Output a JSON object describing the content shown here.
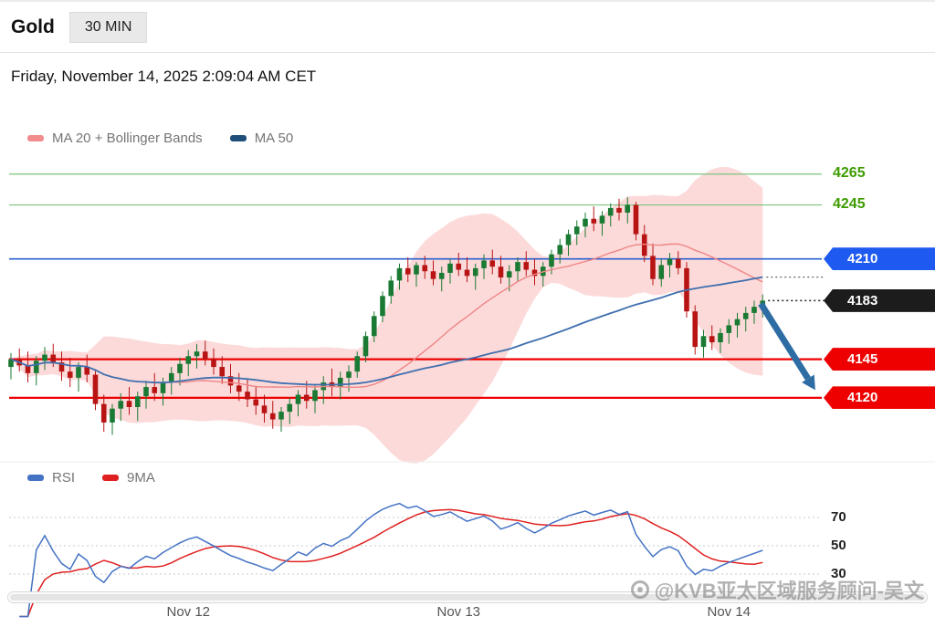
{
  "header": {
    "title": "Gold",
    "timeframe": "30 MIN",
    "datetime": "Friday, November 14, 2025 2:09:04 AM CET"
  },
  "legend_main": [
    {
      "label": "MA 20 + Bollinger Bands",
      "color": "#f28b8b"
    },
    {
      "label": "MA 50",
      "color": "#1f4e79"
    }
  ],
  "legend_rsi": [
    {
      "label": "RSI",
      "color": "#4472c4"
    },
    {
      "label": "9MA",
      "color": "#e02020"
    }
  ],
  "watermark": {
    "text": "@KVB亚太区域服务顾问-吴文"
  },
  "chart_data": {
    "type": "candlestick",
    "instrument": "Gold",
    "interval": "30 MIN",
    "price_axis": {
      "visible_min": 4090,
      "visible_max": 4295
    },
    "x_ticks": [
      {
        "label": "Nov 12",
        "index": 21
      },
      {
        "label": "Nov 13",
        "index": 53
      },
      {
        "label": "Nov 14",
        "index": 85
      }
    ],
    "levels": [
      {
        "label": "4265",
        "price": 4265,
        "kind": "text",
        "color": "#3d9c00",
        "bg": null,
        "line_color": "#7cc47c",
        "line_width": 1.2
      },
      {
        "label": "4245",
        "price": 4245,
        "kind": "text",
        "color": "#3d9c00",
        "bg": null,
        "line_color": "#7cc47c",
        "line_width": 1.2
      },
      {
        "label": "4210",
        "price": 4210,
        "kind": "badge",
        "color": "#ffffff",
        "bg": "#1f5af0",
        "line_color": "#2a5fd0",
        "line_width": 1.6
      },
      {
        "label": "4183",
        "price": 4183,
        "kind": "badge",
        "color": "#ffffff",
        "bg": "#1c1c1c",
        "line_color": null,
        "line_width": 0
      },
      {
        "label": "4145",
        "price": 4145,
        "kind": "badge",
        "color": "#ffffff",
        "bg": "#ee0000",
        "line_color": "#ee0000",
        "line_width": 2.2
      },
      {
        "label": "4120",
        "price": 4120,
        "kind": "badge",
        "color": "#ffffff",
        "bg": "#ee0000",
        "line_color": "#ee0000",
        "line_width": 2.2
      }
    ],
    "overlays": {
      "ma20_bollinger": {
        "period": 20,
        "stdev_mult": 2
      },
      "ma50": {
        "period": 50
      }
    },
    "rsi": {
      "period": 14,
      "signal_period": 9,
      "gridlines": [
        {
          "label": "70",
          "value": 70
        },
        {
          "label": "50",
          "value": 50
        },
        {
          "label": "30",
          "value": 30
        }
      ]
    },
    "annotation_arrow": {
      "from_price": 4181,
      "to_price": 4125,
      "from_xfrac": 0.925,
      "to_xfrac": 0.992
    },
    "colors": {
      "up": "#1a7a33",
      "down": "#b81414",
      "band_fill": "rgba(246,140,140,0.32)",
      "ma20": "#ef8585",
      "ma50": "#3f6fae",
      "rsi": "#4472c4",
      "rsi_ma": "#e02020",
      "arrow": "#2e6da4"
    },
    "candles": [
      [
        4140,
        4149,
        4132,
        4145
      ],
      [
        4145,
        4152,
        4137,
        4141
      ],
      [
        4141,
        4150,
        4130,
        4136
      ],
      [
        4136,
        4147,
        4128,
        4144
      ],
      [
        4144,
        4153,
        4138,
        4148
      ],
      [
        4148,
        4155,
        4140,
        4143
      ],
      [
        4143,
        4150,
        4131,
        4137
      ],
      [
        4137,
        4146,
        4127,
        4133
      ],
      [
        4133,
        4143,
        4124,
        4140
      ],
      [
        4140,
        4148,
        4130,
        4135
      ],
      [
        4135,
        4138,
        4112,
        4116
      ],
      [
        4116,
        4122,
        4098,
        4104
      ],
      [
        4104,
        4116,
        4096,
        4113
      ],
      [
        4113,
        4123,
        4105,
        4118
      ],
      [
        4118,
        4127,
        4109,
        4114
      ],
      [
        4114,
        4124,
        4105,
        4121
      ],
      [
        4121,
        4131,
        4113,
        4127
      ],
      [
        4127,
        4136,
        4118,
        4123
      ],
      [
        4123,
        4133,
        4115,
        4130
      ],
      [
        4130,
        4140,
        4122,
        4136
      ],
      [
        4136,
        4146,
        4128,
        4142
      ],
      [
        4142,
        4151,
        4134,
        4147
      ],
      [
        4147,
        4155,
        4139,
        4150
      ],
      [
        4150,
        4157,
        4141,
        4145
      ],
      [
        4145,
        4152,
        4135,
        4140
      ],
      [
        4140,
        4147,
        4129,
        4134
      ],
      [
        4134,
        4142,
        4123,
        4128
      ],
      [
        4128,
        4136,
        4118,
        4124
      ],
      [
        4124,
        4132,
        4114,
        4119
      ],
      [
        4119,
        4127,
        4109,
        4115
      ],
      [
        4115,
        4122,
        4104,
        4110
      ],
      [
        4110,
        4118,
        4100,
        4106
      ],
      [
        4106,
        4114,
        4098,
        4111
      ],
      [
        4111,
        4120,
        4103,
        4116
      ],
      [
        4116,
        4125,
        4108,
        4122
      ],
      [
        4122,
        4131,
        4113,
        4118
      ],
      [
        4118,
        4128,
        4110,
        4125
      ],
      [
        4125,
        4134,
        4116,
        4130
      ],
      [
        4130,
        4139,
        4121,
        4127
      ],
      [
        4127,
        4137,
        4119,
        4133
      ],
      [
        4133,
        4141,
        4124,
        4137
      ],
      [
        4137,
        4150,
        4133,
        4147
      ],
      [
        4147,
        4163,
        4143,
        4160
      ],
      [
        4160,
        4176,
        4156,
        4173
      ],
      [
        4173,
        4189,
        4169,
        4186
      ],
      [
        4186,
        4199,
        4181,
        4196
      ],
      [
        4196,
        4207,
        4190,
        4204
      ],
      [
        4204,
        4211,
        4195,
        4200
      ],
      [
        4200,
        4208,
        4192,
        4206
      ],
      [
        4206,
        4212,
        4197,
        4202
      ],
      [
        4202,
        4209,
        4193,
        4197
      ],
      [
        4197,
        4205,
        4189,
        4201
      ],
      [
        4201,
        4210,
        4194,
        4207
      ],
      [
        4207,
        4214,
        4199,
        4203
      ],
      [
        4203,
        4211,
        4195,
        4199
      ],
      [
        4199,
        4207,
        4190,
        4204
      ],
      [
        4204,
        4213,
        4197,
        4209
      ],
      [
        4209,
        4216,
        4200,
        4205
      ],
      [
        4205,
        4212,
        4194,
        4198
      ],
      [
        4198,
        4206,
        4189,
        4202
      ],
      [
        4202,
        4211,
        4195,
        4208
      ],
      [
        4208,
        4215,
        4199,
        4203
      ],
      [
        4203,
        4210,
        4193,
        4199
      ],
      [
        4199,
        4208,
        4192,
        4205
      ],
      [
        4205,
        4216,
        4200,
        4213
      ],
      [
        4213,
        4223,
        4207,
        4219
      ],
      [
        4219,
        4229,
        4212,
        4226
      ],
      [
        4226,
        4235,
        4219,
        4231
      ],
      [
        4231,
        4240,
        4224,
        4236
      ],
      [
        4236,
        4244,
        4228,
        4233
      ],
      [
        4233,
        4241,
        4225,
        4238
      ],
      [
        4238,
        4246,
        4231,
        4243
      ],
      [
        4243,
        4249,
        4235,
        4240
      ],
      [
        4240,
        4250,
        4233,
        4245
      ],
      [
        4245,
        4247,
        4222,
        4226
      ],
      [
        4226,
        4232,
        4208,
        4212
      ],
      [
        4212,
        4220,
        4193,
        4197
      ],
      [
        4197,
        4210,
        4192,
        4206
      ],
      [
        4206,
        4214,
        4198,
        4210
      ],
      [
        4210,
        4215,
        4200,
        4204
      ],
      [
        4204,
        4208,
        4172,
        4176
      ],
      [
        4176,
        4180,
        4148,
        4153
      ],
      [
        4153,
        4164,
        4146,
        4160
      ],
      [
        4160,
        4167,
        4151,
        4156
      ],
      [
        4156,
        4165,
        4149,
        4162
      ],
      [
        4162,
        4171,
        4155,
        4167
      ],
      [
        4167,
        4175,
        4159,
        4171
      ],
      [
        4171,
        4179,
        4163,
        4175
      ],
      [
        4175,
        4183,
        4168,
        4179
      ],
      [
        4179,
        4187,
        4172,
        4183
      ]
    ]
  }
}
